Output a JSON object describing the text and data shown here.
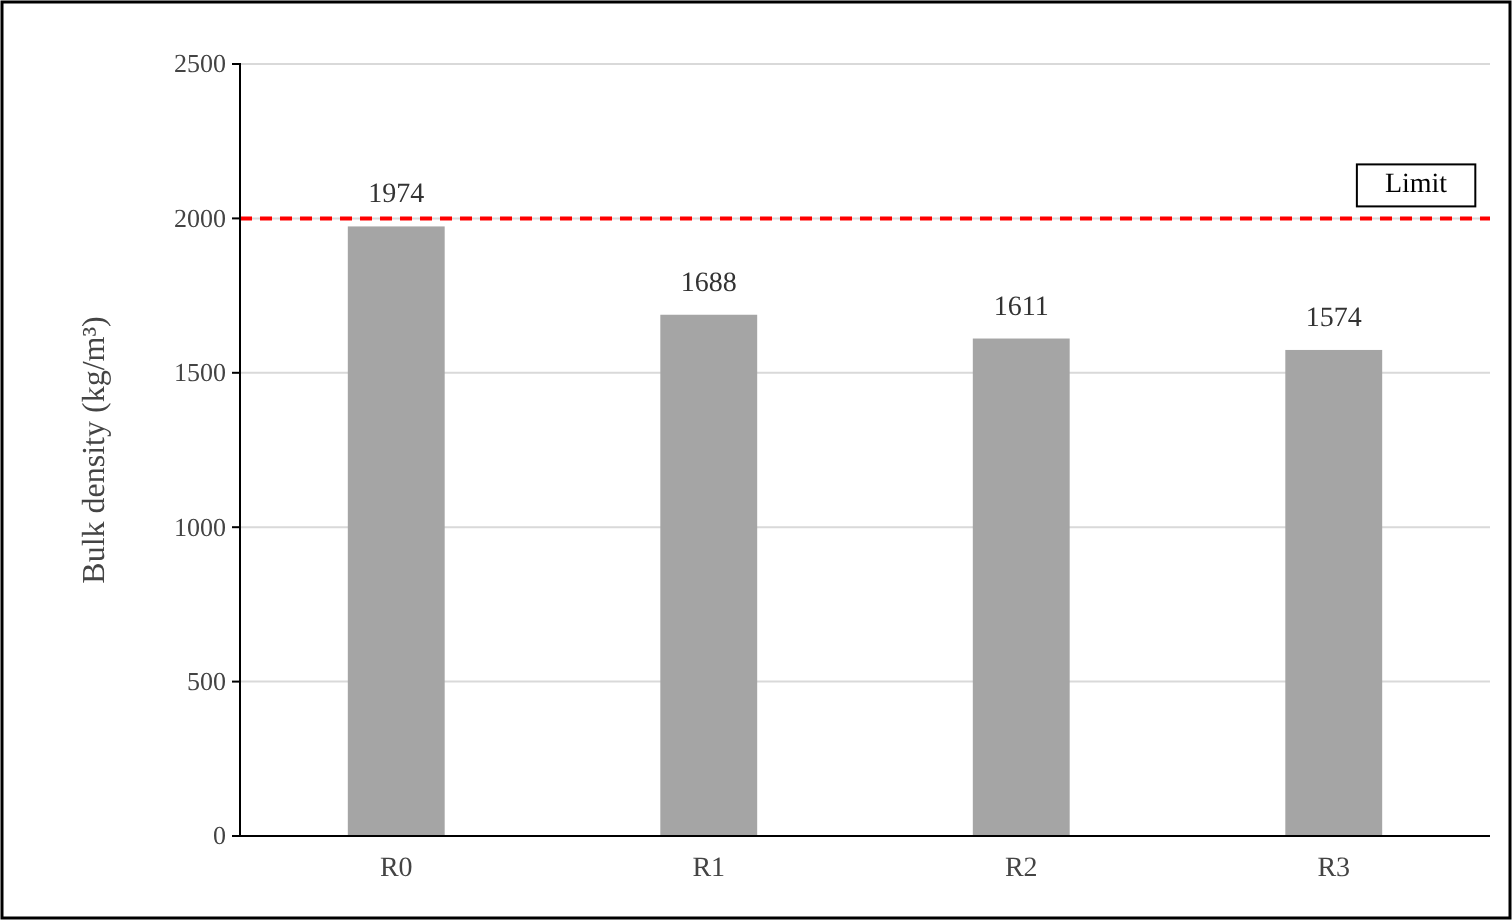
{
  "chart_data": {
    "type": "bar",
    "ylabel": "Bulk density (kg/m³)",
    "categories": [
      "R0",
      "R1",
      "R2",
      "R3"
    ],
    "values": [
      1974,
      1688,
      1611,
      1574
    ],
    "color": "#a5a5a5",
    "ylim": [
      0,
      2500
    ],
    "yticks": [
      0,
      500,
      1000,
      1500,
      2000,
      2500
    ],
    "grid": "y",
    "data_labels": true,
    "ref_lines": [
      {
        "axis": "y",
        "value": 2000,
        "label": "Limit",
        "color": "#ff0000",
        "line_style": "dashed"
      }
    ]
  }
}
